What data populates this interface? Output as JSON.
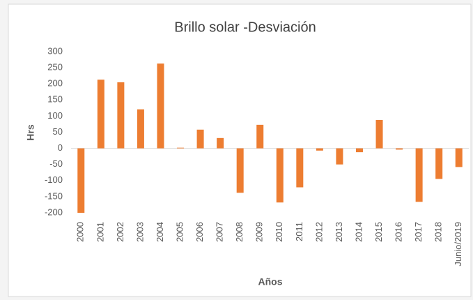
{
  "chart_data": {
    "type": "bar",
    "title": "Brillo solar -Desviación",
    "y_label": "Hrs",
    "x_label": "Años",
    "categories": [
      "2000",
      "2001",
      "2002",
      "2003",
      "2004",
      "2005",
      "2006",
      "2007",
      "2008",
      "2009",
      "2010",
      "2011",
      "2012",
      "2013",
      "2014",
      "2015",
      "2016",
      "2017",
      "2018",
      "Junio/2019"
    ],
    "values": [
      -200,
      213,
      205,
      121,
      263,
      2,
      58,
      32,
      -138,
      73,
      -168,
      -121,
      -7,
      -50,
      -12,
      88,
      -4,
      -166,
      -95,
      -58
    ],
    "color": "#ed7d31",
    "ylim": [
      -200,
      300
    ],
    "yticks": [
      -200,
      -150,
      -100,
      -50,
      0,
      50,
      100,
      150,
      200,
      250,
      300
    ],
    "grid": false
  }
}
